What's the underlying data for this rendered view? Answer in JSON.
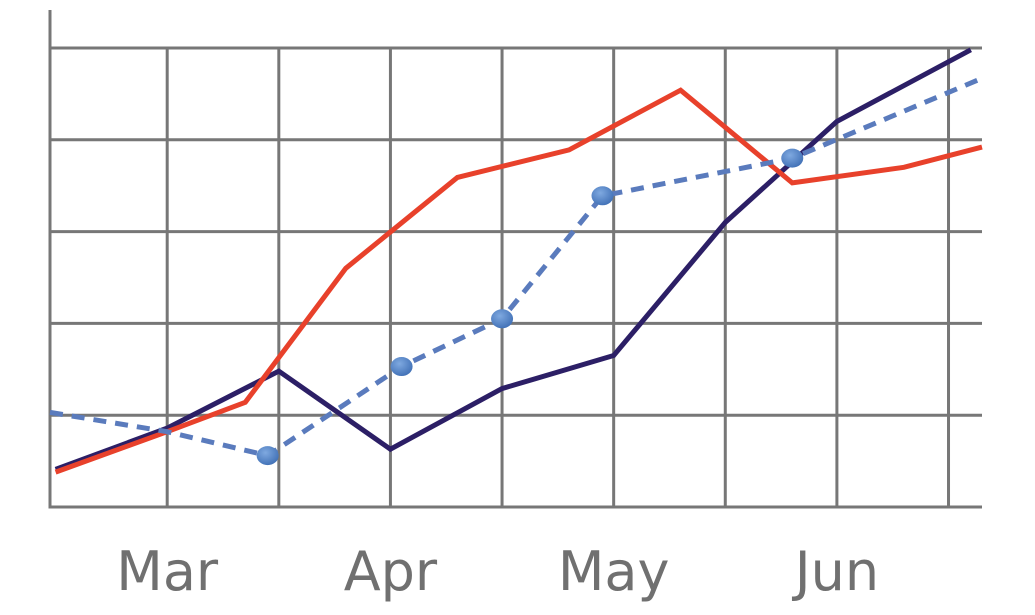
{
  "chart_data": {
    "type": "line",
    "title": "",
    "xlabel": "",
    "ylabel": "",
    "x_tick_labels": [
      "Mar",
      "Apr",
      "May",
      "Jun"
    ],
    "x_tick_positions": [
      1,
      3,
      5,
      7
    ],
    "xlim": [
      -0.05,
      8.3
    ],
    "ylim": [
      0,
      5
    ],
    "grid": true,
    "legend": "none",
    "series": [
      {
        "color": "#2c1f66",
        "style": "solid",
        "points": [
          [
            0,
            0.41
          ],
          [
            1,
            0.86
          ],
          [
            2,
            1.48
          ],
          [
            3,
            0.63
          ],
          [
            4,
            1.29
          ],
          [
            5,
            1.65
          ],
          [
            6,
            3.1
          ],
          [
            7,
            4.2
          ],
          [
            8.2,
            4.98
          ]
        ]
      },
      {
        "color": "#e8412b",
        "style": "solid",
        "points": [
          [
            0,
            0.38
          ],
          [
            1,
            0.82
          ],
          [
            1.7,
            1.14
          ],
          [
            2.6,
            2.6
          ],
          [
            3.6,
            3.59
          ],
          [
            4.6,
            3.89
          ],
          [
            5.6,
            4.54
          ],
          [
            6.6,
            3.53
          ],
          [
            7.6,
            3.7
          ],
          [
            8.3,
            3.92
          ]
        ]
      },
      {
        "color": "#5a7bbd",
        "style": "dashed",
        "markers": [
          [
            1.9,
            0.56
          ],
          [
            3.1,
            1.53
          ],
          [
            4,
            2.05
          ],
          [
            4.9,
            3.39
          ],
          [
            6.6,
            3.8
          ]
        ],
        "points": [
          [
            -0.05,
            1.03
          ],
          [
            1,
            0.82
          ],
          [
            1.9,
            0.56
          ],
          [
            3.1,
            1.53
          ],
          [
            4,
            2.05
          ],
          [
            4.9,
            3.39
          ],
          [
            6.6,
            3.8
          ],
          [
            8.3,
            4.67
          ]
        ]
      }
    ]
  }
}
